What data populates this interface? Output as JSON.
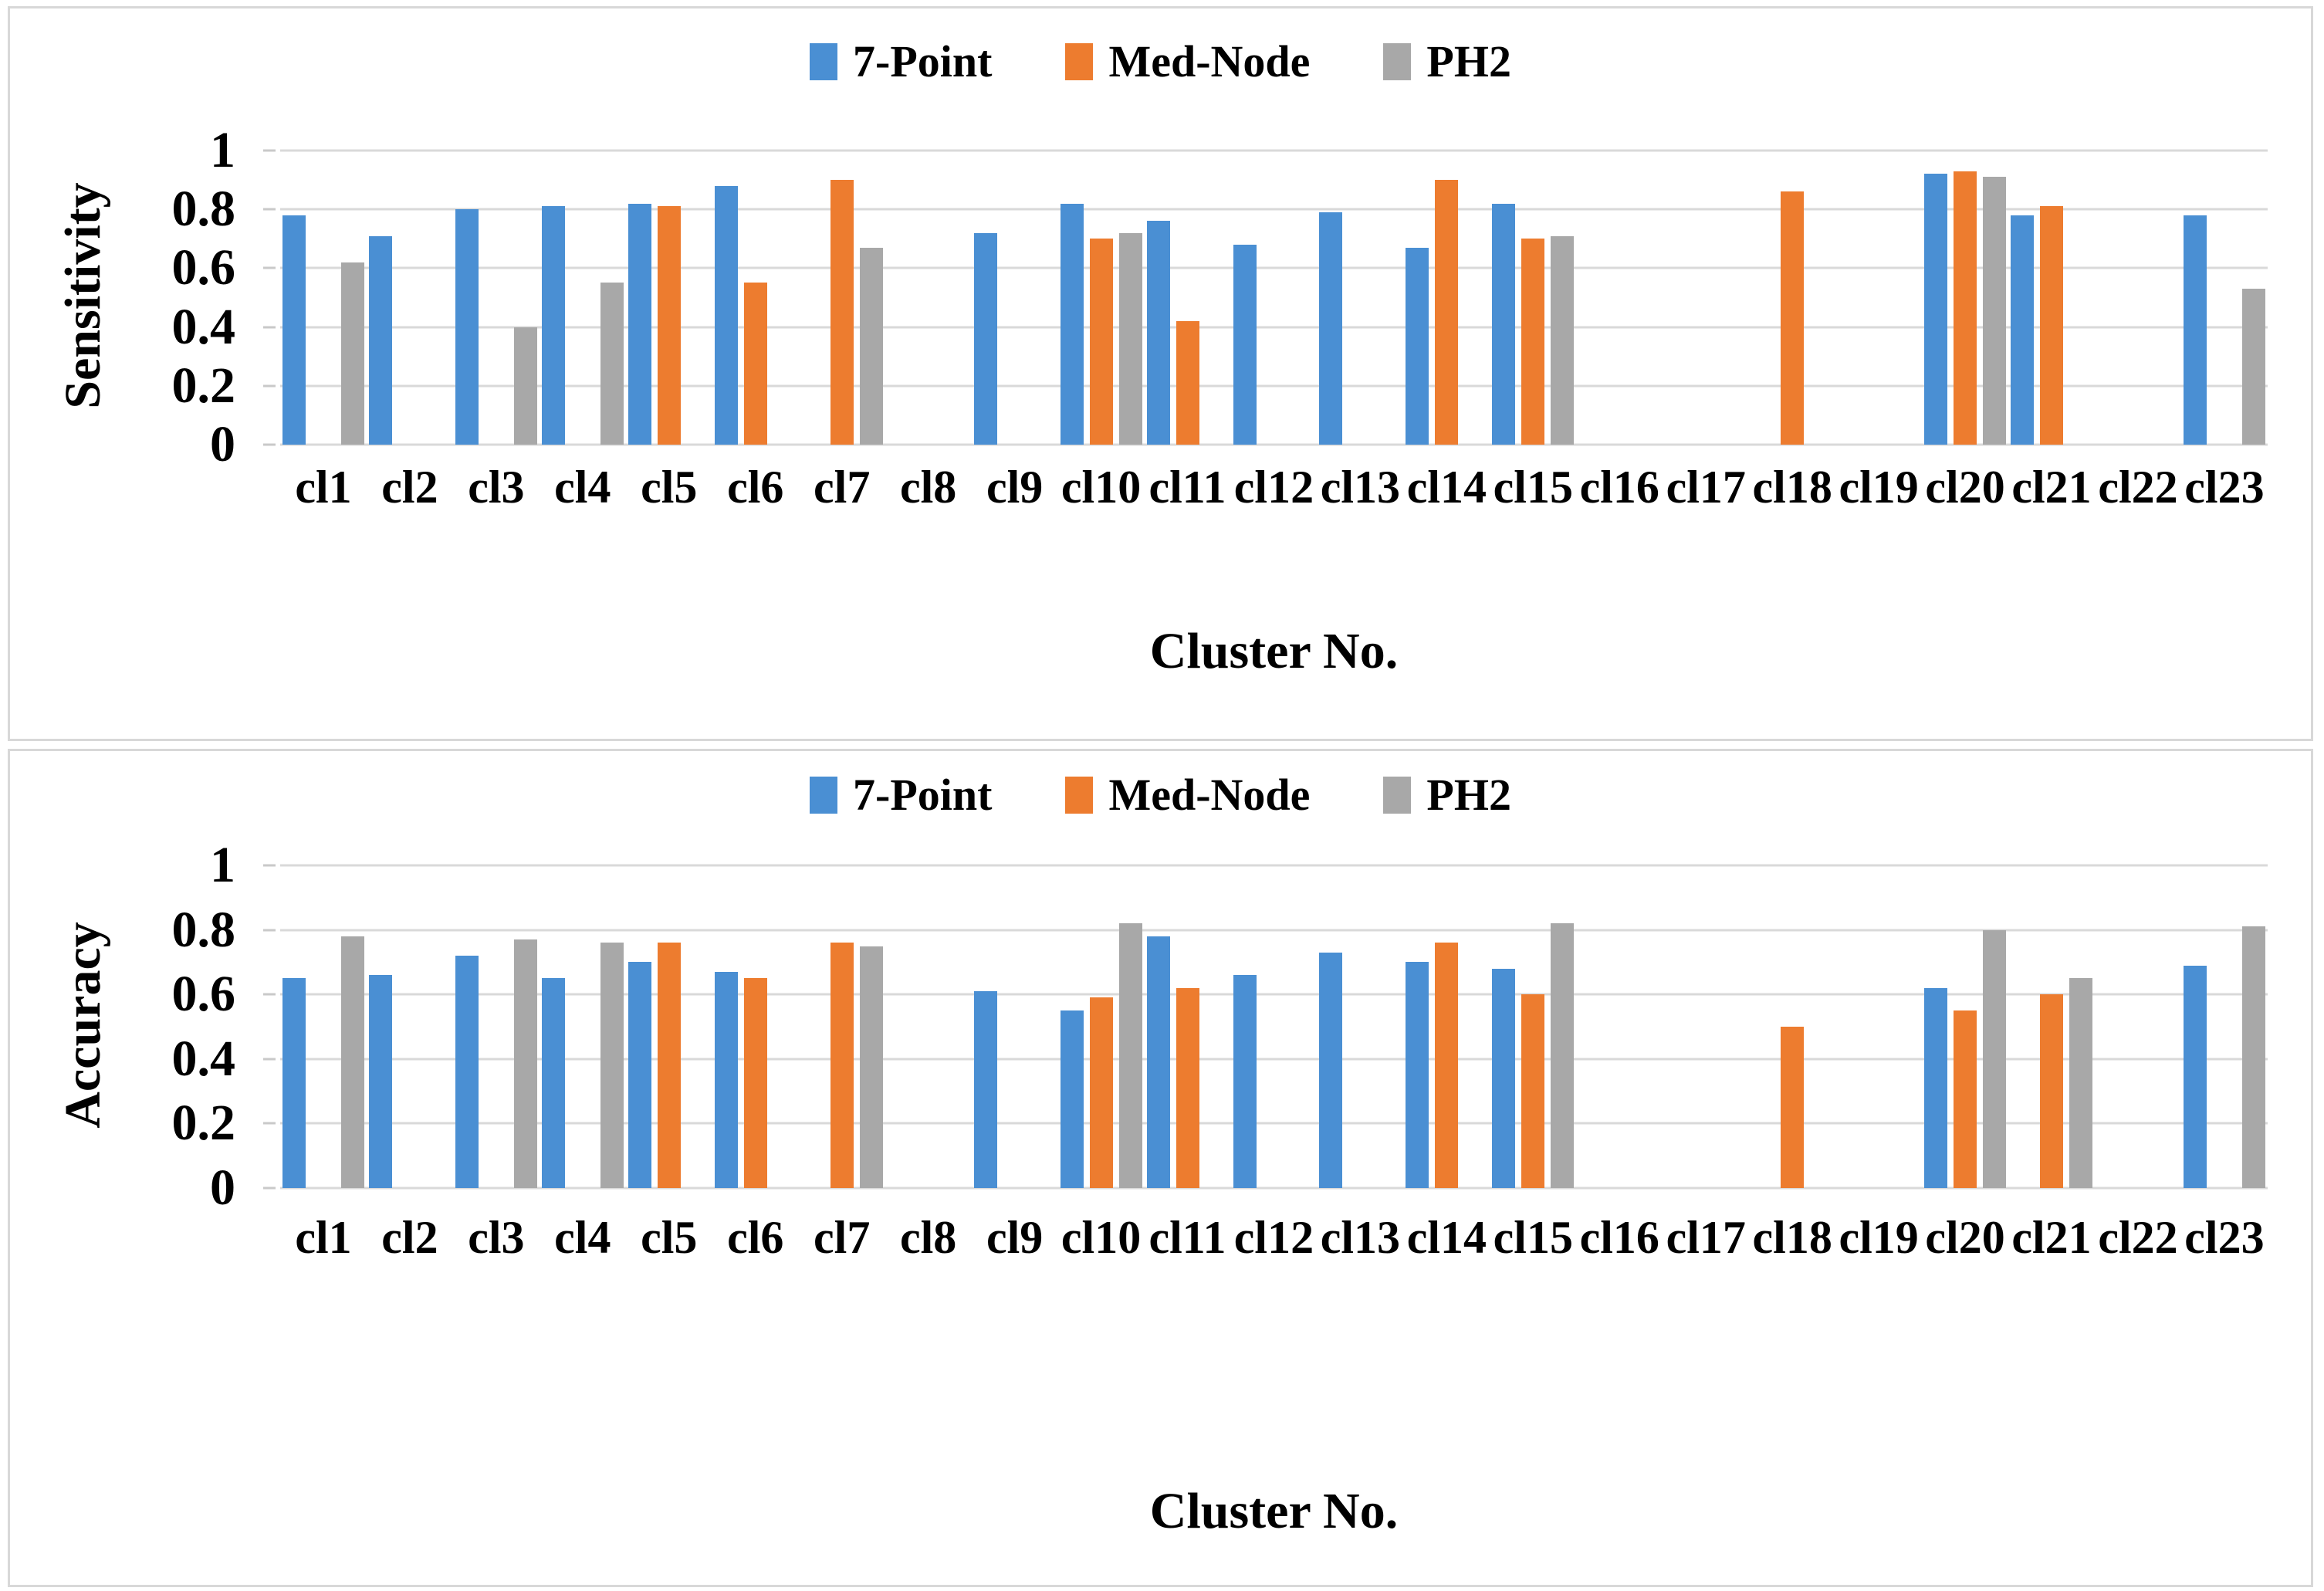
{
  "colors": {
    "series_blue": "#4A8FD3",
    "series_orange": "#ED7C2F",
    "series_gray": "#A8A8A8",
    "gridline": "#D9D9D9",
    "panel_border": "#D8D8D8",
    "text": "#000000"
  },
  "chart_data": [
    {
      "type": "bar",
      "title": "",
      "ylabel": "Sensitivity",
      "xlabel": "Cluster No.",
      "ylim": [
        0,
        1
      ],
      "ytick_step": 0.2,
      "ytick_labels": [
        "1",
        "0.8",
        "0.6",
        "0.4",
        "0.2",
        "0"
      ],
      "grid": "horizontal",
      "legend_position": "top-center",
      "categories": [
        "cl1",
        "cl2",
        "cl3",
        "cl4",
        "cl5",
        "cl6",
        "cl7",
        "cl8",
        "cl9",
        "cl10",
        "cl11",
        "cl12",
        "cl13",
        "cl14",
        "cl15",
        "cl16",
        "cl17",
        "cl18",
        "cl19",
        "cl20",
        "cl21",
        "cl22",
        "cl23"
      ],
      "series": [
        {
          "name": "7-Point",
          "color": "#4A8FD3",
          "values": [
            0.78,
            0.71,
            0.8,
            0.81,
            0.82,
            0.88,
            null,
            null,
            0.72,
            0.82,
            0.76,
            0.68,
            0.79,
            0.67,
            0.82,
            null,
            null,
            null,
            null,
            0.92,
            0.78,
            null,
            0.78
          ]
        },
        {
          "name": "Med-Node",
          "color": "#ED7C2F",
          "values": [
            null,
            null,
            null,
            null,
            0.81,
            0.55,
            0.9,
            null,
            null,
            0.7,
            0.42,
            null,
            null,
            0.9,
            0.7,
            null,
            null,
            0.86,
            null,
            0.93,
            0.81,
            null,
            null
          ]
        },
        {
          "name": "PH2",
          "color": "#A8A8A8",
          "values": [
            0.62,
            null,
            0.4,
            0.55,
            null,
            null,
            0.67,
            null,
            null,
            0.72,
            null,
            null,
            null,
            null,
            0.71,
            null,
            null,
            null,
            null,
            0.91,
            null,
            null,
            0.53
          ]
        }
      ]
    },
    {
      "type": "bar",
      "title": "",
      "ylabel": "Accuracy",
      "xlabel": "Cluster No.",
      "ylim": [
        0,
        1
      ],
      "ytick_step": 0.2,
      "ytick_labels": [
        "1",
        "0.8",
        "0.6",
        "0.4",
        "0.2",
        "0"
      ],
      "grid": "horizontal",
      "legend_position": "top-center",
      "categories": [
        "cl1",
        "cl2",
        "cl3",
        "cl4",
        "cl5",
        "cl6",
        "cl7",
        "cl8",
        "cl9",
        "cl10",
        "cl11",
        "cl12",
        "cl13",
        "cl14",
        "cl15",
        "cl16",
        "cl17",
        "cl18",
        "cl19",
        "cl20",
        "cl21",
        "cl22",
        "cl23"
      ],
      "series": [
        {
          "name": "7-Point",
          "color": "#4A8FD3",
          "values": [
            0.65,
            0.66,
            0.72,
            0.65,
            0.7,
            0.67,
            null,
            null,
            0.61,
            0.55,
            0.78,
            0.66,
            0.73,
            0.7,
            0.68,
            null,
            null,
            null,
            null,
            0.62,
            null,
            null,
            0.69
          ]
        },
        {
          "name": "Med-Node",
          "color": "#ED7C2F",
          "values": [
            null,
            null,
            null,
            null,
            0.76,
            0.65,
            0.76,
            null,
            null,
            0.59,
            0.62,
            null,
            null,
            0.76,
            0.6,
            null,
            null,
            0.5,
            null,
            0.55,
            0.6,
            null,
            null
          ]
        },
        {
          "name": "PH2",
          "color": "#A8A8A8",
          "values": [
            0.78,
            null,
            0.77,
            0.76,
            null,
            null,
            0.75,
            null,
            null,
            0.82,
            null,
            null,
            null,
            null,
            0.82,
            null,
            null,
            null,
            null,
            0.8,
            0.65,
            null,
            0.81
          ]
        }
      ]
    }
  ]
}
